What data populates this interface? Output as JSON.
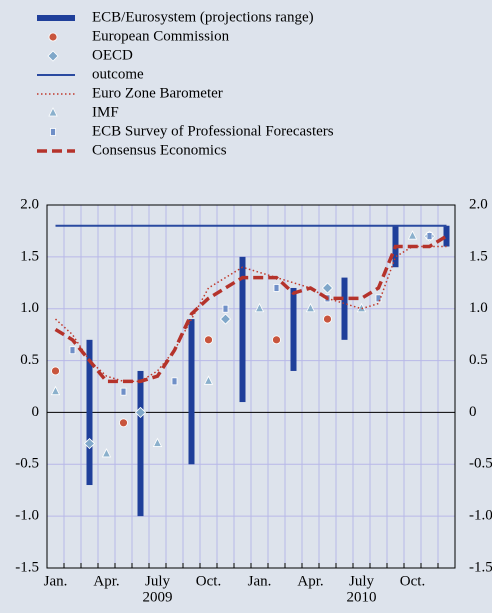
{
  "chart_data": {
    "type": "combo",
    "categories": [
      "Jan.",
      null,
      null,
      "Apr.",
      null,
      null,
      "July",
      null,
      null,
      "Oct.",
      null,
      null,
      "Jan.",
      null,
      null,
      "Apr.",
      null,
      null,
      "July",
      null,
      null,
      "Oct.",
      null,
      null
    ],
    "years": [
      "2009",
      "2010"
    ],
    "ylim": [
      -1.5,
      2.0
    ],
    "yticks": [
      {
        "value": 2.0,
        "label": "2.0"
      },
      1.5,
      {
        "value": 1.0,
        "label": "1.0"
      },
      0.5,
      0,
      -0.5,
      {
        "value": -1.0,
        "label": "-1.0"
      },
      -1.5
    ],
    "grid": true,
    "series": [
      {
        "name": "ECB/Eurosystem (projections range)",
        "type": "range",
        "color": "#1f3f9a",
        "low": [
          null,
          null,
          -0.7,
          null,
          null,
          -1.0,
          null,
          null,
          -0.5,
          null,
          null,
          0.1,
          null,
          null,
          0.4,
          null,
          null,
          0.7,
          null,
          null,
          1.4,
          null,
          null,
          1.6
        ],
        "high": [
          null,
          null,
          0.7,
          null,
          null,
          0.4,
          null,
          null,
          0.9,
          null,
          null,
          1.5,
          null,
          null,
          1.2,
          null,
          null,
          1.3,
          null,
          null,
          1.8,
          null,
          null,
          1.8
        ]
      },
      {
        "name": "European Commission",
        "type": "circle",
        "color": "#c8553d",
        "values": [
          0.4,
          null,
          null,
          null,
          -0.1,
          null,
          null,
          null,
          null,
          0.7,
          null,
          null,
          null,
          0.7,
          null,
          null,
          0.9,
          null,
          null,
          null,
          null,
          null,
          1.7,
          null
        ]
      },
      {
        "name": "OECD",
        "type": "diamond",
        "color": "#7fa7c9",
        "values": [
          null,
          null,
          -0.3,
          null,
          null,
          0.0,
          null,
          null,
          null,
          null,
          0.9,
          null,
          null,
          null,
          null,
          null,
          1.2,
          null,
          null,
          null,
          null,
          null,
          1.7,
          null
        ]
      },
      {
        "name": "outcome",
        "type": "line",
        "color": "#2a4aa0",
        "dash": "solid",
        "width": 2,
        "values": [
          1.8,
          1.8,
          1.8,
          1.8,
          1.8,
          1.8,
          1.8,
          1.8,
          1.8,
          1.8,
          1.8,
          1.8,
          1.8,
          1.8,
          1.8,
          1.8,
          1.8,
          1.8,
          1.8,
          1.8,
          1.8,
          1.8,
          1.8,
          1.8
        ]
      },
      {
        "name": "Euro Zone Barometer",
        "type": "line",
        "color": "#c0392b",
        "dash": "dotted",
        "width": 1.5,
        "values": [
          0.9,
          0.75,
          0.5,
          0.35,
          0.3,
          0.3,
          0.4,
          0.6,
          0.9,
          1.2,
          1.3,
          1.4,
          1.35,
          1.3,
          1.25,
          1.2,
          1.1,
          1.05,
          1.0,
          1.05,
          1.5,
          1.6,
          1.6,
          1.6
        ]
      },
      {
        "name": "IMF",
        "type": "triangle",
        "color": "#8ab0cc",
        "values": [
          0.2,
          null,
          null,
          -0.4,
          null,
          null,
          -0.3,
          null,
          null,
          0.3,
          null,
          null,
          1.0,
          null,
          null,
          1.0,
          null,
          null,
          1.0,
          null,
          null,
          1.7,
          null,
          null
        ]
      },
      {
        "name": "ECB Survey of Professional Forecasters",
        "type": "square",
        "color": "#6f8fc7",
        "values": [
          null,
          0.6,
          null,
          null,
          0.2,
          null,
          null,
          0.3,
          null,
          null,
          1.0,
          null,
          null,
          1.2,
          null,
          null,
          1.1,
          null,
          null,
          1.1,
          null,
          null,
          1.7,
          null
        ]
      },
      {
        "name": "Consensus Economics",
        "type": "line",
        "color": "#b5332b",
        "dash": "dashed",
        "width": 3.5,
        "values": [
          0.8,
          0.7,
          0.5,
          0.3,
          0.3,
          0.3,
          0.35,
          0.6,
          0.95,
          1.1,
          1.2,
          1.3,
          1.3,
          1.3,
          1.15,
          1.2,
          1.1,
          1.1,
          1.1,
          1.2,
          1.6,
          1.6,
          1.6,
          1.7
        ]
      }
    ]
  }
}
